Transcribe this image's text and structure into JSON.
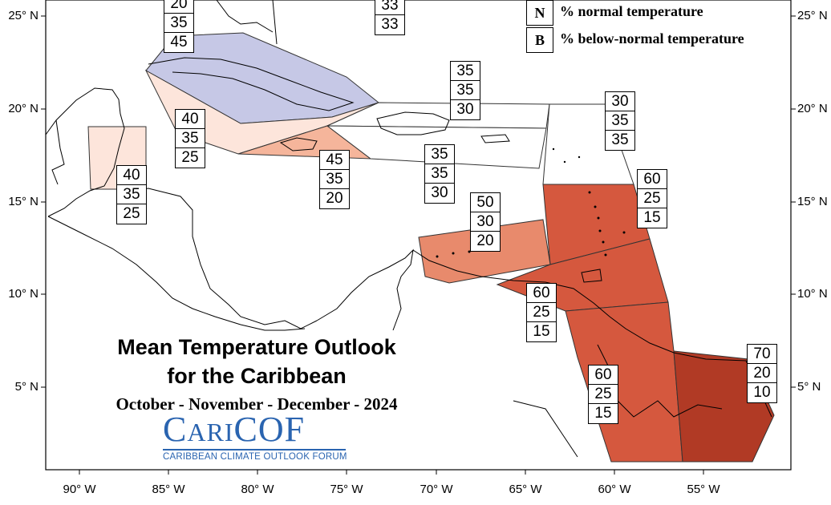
{
  "title_line1": "Mean Temperature Outlook",
  "title_line2": "for the Caribbean",
  "season": "October - November - December - 2024",
  "logo": {
    "name": "CariCOF",
    "tagline": "CARIBBEAN CLIMATE OUTLOOK FORUM",
    "color": "#2a64b0"
  },
  "legend": [
    {
      "key": "N",
      "label": "% normal temperature"
    },
    {
      "key": "B",
      "label": "% below-normal temperature"
    }
  ],
  "lat_labels": [
    "25° N",
    "20° N",
    "15° N",
    "10° N",
    "5° N"
  ],
  "lon_labels": [
    "90° W",
    "85° W",
    "80° W",
    "75° W",
    "70° W",
    "65° W",
    "60° W",
    "55° W"
  ],
  "regions": [
    {
      "name": "bahamas-north",
      "probs": [
        "20",
        "35",
        "45"
      ],
      "fill": "#c6c8e6"
    },
    {
      "name": "turks-caicos",
      "probs": [
        "33",
        "33"
      ]
    },
    {
      "name": "hispaniola",
      "probs": [
        "35",
        "35",
        "30"
      ],
      "fill": "#ffffff"
    },
    {
      "name": "puerto-rico-virgin-islands",
      "probs": [
        "30",
        "35",
        "35"
      ],
      "fill": "#ffffff"
    },
    {
      "name": "cayman-south-cuba-waters",
      "probs": [
        "40",
        "35",
        "25"
      ],
      "fill": "#fde5db"
    },
    {
      "name": "belize",
      "probs": [
        "40",
        "35",
        "25"
      ],
      "fill": "#fde5db"
    },
    {
      "name": "jamaica",
      "probs": [
        "45",
        "35",
        "20"
      ],
      "fill": "#f5b59b"
    },
    {
      "name": "caribbean-sea-central",
      "probs": [
        "35",
        "35",
        "30"
      ],
      "fill": "#ffffff"
    },
    {
      "name": "leeward-windward-islands",
      "probs": [
        "60",
        "25",
        "15"
      ],
      "fill": "#d5583e"
    },
    {
      "name": "abc-islands",
      "probs": [
        "50",
        "30",
        "20"
      ],
      "fill": "#e88a6c"
    },
    {
      "name": "trinidad-tobago",
      "probs": [
        "60",
        "25",
        "15"
      ],
      "fill": "#d5583e"
    },
    {
      "name": "guyana",
      "probs": [
        "60",
        "25",
        "15"
      ],
      "fill": "#d5583e"
    },
    {
      "name": "suriname-french-guiana",
      "probs": [
        "70",
        "20",
        "10"
      ],
      "fill": "#b13a25"
    }
  ]
}
